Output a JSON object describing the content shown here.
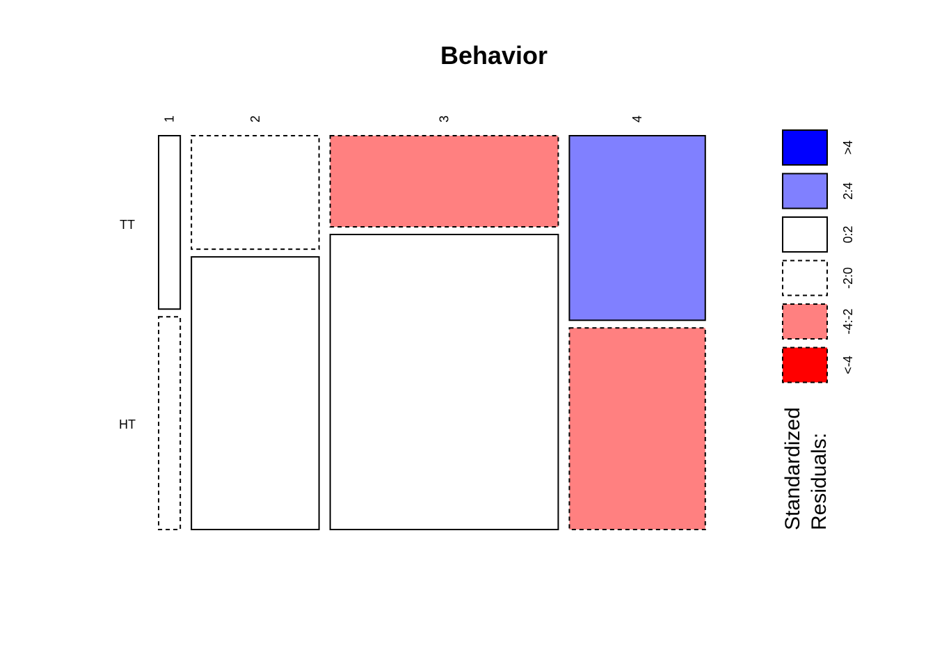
{
  "chart_data": {
    "type": "mosaic",
    "title": "Behavior",
    "column_categories": [
      "1",
      "2",
      "3",
      "4"
    ],
    "row_categories": [
      "TT",
      "HT"
    ],
    "column_proportions": [
      0.0412,
      0.2427,
      0.4336,
      0.2584
    ],
    "cells": [
      {
        "column": "1",
        "row": "TT",
        "proportion_of_column": 0.449,
        "residual_band": "0:2"
      },
      {
        "column": "1",
        "row": "HT",
        "proportion_of_column": 0.551,
        "residual_band": "-2:0"
      },
      {
        "column": "2",
        "row": "TT",
        "proportion_of_column": 0.294,
        "residual_band": "-2:0"
      },
      {
        "column": "2",
        "row": "HT",
        "proportion_of_column": 0.706,
        "residual_band": "0:2"
      },
      {
        "column": "3",
        "row": "TT",
        "proportion_of_column": 0.236,
        "residual_band": "-4:-2"
      },
      {
        "column": "3",
        "row": "HT",
        "proportion_of_column": 0.764,
        "residual_band": "0:2"
      },
      {
        "column": "4",
        "row": "TT",
        "proportion_of_column": 0.478,
        "residual_band": "2:4"
      },
      {
        "column": "4",
        "row": "HT",
        "proportion_of_column": 0.522,
        "residual_band": "-4:-2"
      }
    ],
    "legend": {
      "title_lines": [
        "Standardized",
        "Residuals:"
      ],
      "placement": "right",
      "bands": [
        {
          "label": ">4",
          "color": "#0000ff",
          "dashed": false
        },
        {
          "label": "2:4",
          "color": "#8080ff",
          "dashed": false
        },
        {
          "label": "0:2",
          "color": "#ffffff",
          "dashed": false
        },
        {
          "label": "-2:0",
          "color": "#ffffff",
          "dashed": true
        },
        {
          "label": "-4:-2",
          "color": "#ff8080",
          "dashed": true
        },
        {
          "label": "<-4",
          "color": "#ff0000",
          "dashed": true
        }
      ]
    }
  }
}
